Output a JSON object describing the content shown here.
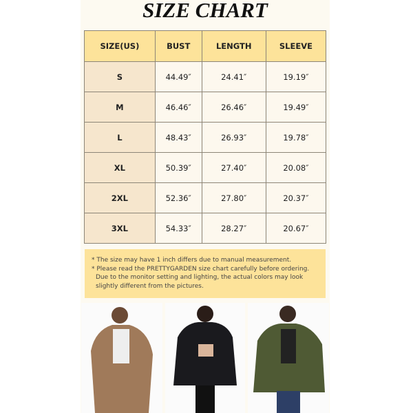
{
  "title": "SIZE CHART",
  "table": {
    "headers": [
      "SIZE(US)",
      "BUST",
      "LENGTH",
      "SLEEVE"
    ],
    "rows": [
      [
        "S",
        "44.49″",
        "24.41″",
        "19.19″"
      ],
      [
        "M",
        "46.46″",
        "26.46″",
        "19.49″"
      ],
      [
        "L",
        "48.43″",
        "26.93″",
        "19.78″"
      ],
      [
        "XL",
        "50.39″",
        "27.40″",
        "20.08″"
      ],
      [
        "2XL",
        "52.36″",
        "27.80″",
        "20.37″"
      ],
      [
        "3XL",
        "54.33″",
        "28.27″",
        "20.67″"
      ]
    ]
  },
  "notes": {
    "line1": "* The size may have 1 inch differs due to manual measurement.",
    "line2": "* Please read the PRETTYGARDEN size chart carefully before ordering.",
    "line3": "Due to the monitor setting and lighting, the actual colors may look",
    "line4": "slightly different from the pictures."
  },
  "photos": [
    {
      "color": "#a07a5a",
      "name": "camel"
    },
    {
      "color": "#1a1a1e",
      "name": "black"
    },
    {
      "color": "#4f5a34",
      "name": "olive"
    }
  ],
  "colors": {
    "header": "#fde39a",
    "size_column": "#f6e6cd",
    "cell": "#fdf8ee"
  }
}
